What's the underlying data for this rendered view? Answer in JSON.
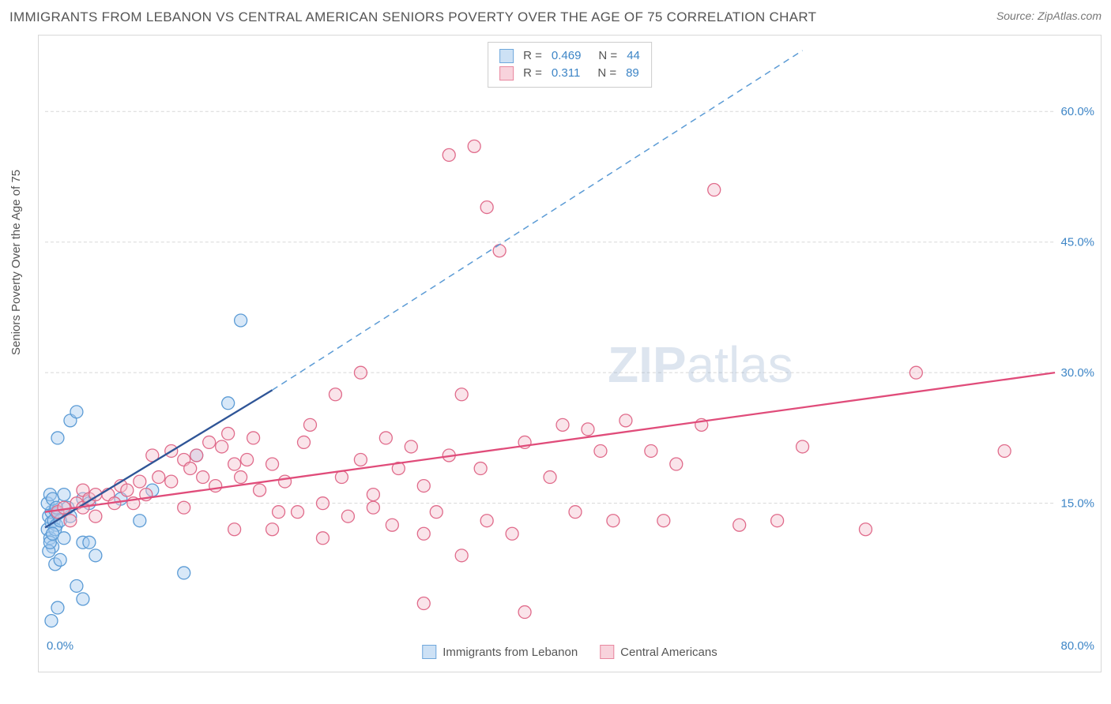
{
  "title": "IMMIGRANTS FROM LEBANON VS CENTRAL AMERICAN SENIORS POVERTY OVER THE AGE OF 75 CORRELATION CHART",
  "source": "Source: ZipAtlas.com",
  "y_axis_label": "Seniors Poverty Over the Age of 75",
  "watermark_bold": "ZIP",
  "watermark_light": "atlas",
  "chart": {
    "type": "scatter",
    "xlim": [
      0,
      80
    ],
    "ylim": [
      0,
      68
    ],
    "y_ticks": [
      15.0,
      30.0,
      45.0,
      60.0
    ],
    "y_tick_labels": [
      "15.0%",
      "30.0%",
      "45.0%",
      "60.0%"
    ],
    "x_tick_left": "0.0%",
    "x_tick_right": "80.0%",
    "background_color": "#ffffff",
    "border_color": "#d8d8d8",
    "grid_color": "#d8d8d8",
    "marker_radius": 8,
    "marker_stroke_width": 1.3,
    "marker_fill_opacity": 0.45,
    "series": [
      {
        "name": "Immigrants from Lebanon",
        "color_fill": "#a8cdf0",
        "color_stroke": "#5b9bd5",
        "R": "0.469",
        "N": "44",
        "trend_solid": {
          "x1": 0,
          "y1": 12.2,
          "x2": 18,
          "y2": 28.0,
          "color": "#2f5597",
          "width": 2.3
        },
        "trend_dashed": {
          "x1": 18,
          "y1": 28.0,
          "x2": 60,
          "y2": 67.0,
          "color": "#5b9bd5",
          "width": 1.5
        },
        "points": [
          [
            0.2,
            12.0
          ],
          [
            0.3,
            13.5
          ],
          [
            0.4,
            11.0
          ],
          [
            0.5,
            12.8
          ],
          [
            0.5,
            14.0
          ],
          [
            0.6,
            10.0
          ],
          [
            0.7,
            13.0
          ],
          [
            0.8,
            14.2
          ],
          [
            0.9,
            12.5
          ],
          [
            1.0,
            13.8
          ],
          [
            0.2,
            15.0
          ],
          [
            0.4,
            16.0
          ],
          [
            0.6,
            15.5
          ],
          [
            1.0,
            22.5
          ],
          [
            2.0,
            24.5
          ],
          [
            2.5,
            25.5
          ],
          [
            1.5,
            16.0
          ],
          [
            2.0,
            13.5
          ],
          [
            3.0,
            15.5
          ],
          [
            3.5,
            15.0
          ],
          [
            3.0,
            10.5
          ],
          [
            3.5,
            10.5
          ],
          [
            4.0,
            9.0
          ],
          [
            2.5,
            5.5
          ],
          [
            3.0,
            4.0
          ],
          [
            0.5,
            1.5
          ],
          [
            0.8,
            8.0
          ],
          [
            1.2,
            8.5
          ],
          [
            1.5,
            11.0
          ],
          [
            6.0,
            15.5
          ],
          [
            7.5,
            13.0
          ],
          [
            8.5,
            16.5
          ],
          [
            11.0,
            7.0
          ],
          [
            12.0,
            20.5
          ],
          [
            14.5,
            26.5
          ],
          [
            15.5,
            36.0
          ],
          [
            1.0,
            3.0
          ],
          [
            0.3,
            9.5
          ],
          [
            0.4,
            10.5
          ],
          [
            0.8,
            12.0
          ],
          [
            0.6,
            11.5
          ],
          [
            0.9,
            14.5
          ],
          [
            1.2,
            13.0
          ],
          [
            1.8,
            14.5
          ]
        ]
      },
      {
        "name": "Central Americans",
        "color_fill": "#f5c3d0",
        "color_stroke": "#e06b8b",
        "R": "0.311",
        "N": "89",
        "trend_solid": {
          "x1": 0,
          "y1": 14.0,
          "x2": 80,
          "y2": 30.0,
          "color": "#e04c7a",
          "width": 2.3
        },
        "points": [
          [
            1.0,
            14.0
          ],
          [
            1.5,
            14.5
          ],
          [
            2.0,
            13.0
          ],
          [
            2.5,
            15.0
          ],
          [
            3.0,
            14.5
          ],
          [
            3.0,
            16.5
          ],
          [
            3.5,
            15.5
          ],
          [
            4.0,
            13.5
          ],
          [
            4.0,
            16.0
          ],
          [
            5.0,
            16.0
          ],
          [
            5.5,
            15.0
          ],
          [
            6.0,
            17.0
          ],
          [
            6.5,
            16.5
          ],
          [
            7.0,
            15.0
          ],
          [
            7.5,
            17.5
          ],
          [
            8.0,
            16.0
          ],
          [
            8.5,
            20.5
          ],
          [
            9.0,
            18.0
          ],
          [
            10.0,
            17.5
          ],
          [
            10.0,
            21.0
          ],
          [
            11.0,
            20.0
          ],
          [
            11.5,
            19.0
          ],
          [
            12.0,
            20.5
          ],
          [
            12.5,
            18.0
          ],
          [
            13.0,
            22.0
          ],
          [
            13.5,
            17.0
          ],
          [
            14.0,
            21.5
          ],
          [
            14.5,
            23.0
          ],
          [
            15.0,
            19.5
          ],
          [
            15.5,
            18.0
          ],
          [
            16.0,
            20.0
          ],
          [
            16.5,
            22.5
          ],
          [
            17.0,
            16.5
          ],
          [
            18.0,
            19.5
          ],
          [
            18.0,
            12.0
          ],
          [
            19.0,
            17.5
          ],
          [
            20.0,
            14.0
          ],
          [
            20.5,
            22.0
          ],
          [
            21.0,
            24.0
          ],
          [
            22.0,
            15.0
          ],
          [
            23.0,
            27.5
          ],
          [
            23.5,
            18.0
          ],
          [
            24.0,
            13.5
          ],
          [
            25.0,
            20.0
          ],
          [
            25.0,
            30.0
          ],
          [
            26.0,
            16.0
          ],
          [
            27.0,
            22.5
          ],
          [
            27.5,
            12.5
          ],
          [
            28.0,
            19.0
          ],
          [
            29.0,
            21.5
          ],
          [
            30.0,
            17.0
          ],
          [
            30.0,
            11.5
          ],
          [
            31.0,
            14.0
          ],
          [
            32.0,
            20.5
          ],
          [
            32.0,
            55.0
          ],
          [
            33.0,
            27.5
          ],
          [
            33.0,
            9.0
          ],
          [
            34.0,
            56.0
          ],
          [
            34.5,
            19.0
          ],
          [
            35.0,
            13.0
          ],
          [
            35.0,
            49.0
          ],
          [
            36.0,
            44.0
          ],
          [
            37.0,
            11.5
          ],
          [
            38.0,
            22.0
          ],
          [
            38.0,
            2.5
          ],
          [
            40.0,
            18.0
          ],
          [
            41.0,
            24.0
          ],
          [
            42.0,
            14.0
          ],
          [
            43.0,
            23.5
          ],
          [
            44.0,
            21.0
          ],
          [
            45.0,
            13.0
          ],
          [
            46.0,
            24.5
          ],
          [
            48.0,
            21.0
          ],
          [
            49.0,
            13.0
          ],
          [
            50.0,
            19.5
          ],
          [
            52.0,
            24.0
          ],
          [
            53.0,
            51.0
          ],
          [
            55.0,
            12.5
          ],
          [
            58.0,
            13.0
          ],
          [
            60.0,
            21.5
          ],
          [
            65.0,
            12.0
          ],
          [
            69.0,
            30.0
          ],
          [
            76.0,
            21.0
          ],
          [
            15.0,
            12.0
          ],
          [
            18.5,
            14.0
          ],
          [
            22.0,
            11.0
          ],
          [
            26.0,
            14.5
          ],
          [
            30.0,
            3.5
          ],
          [
            11.0,
            14.5
          ]
        ]
      }
    ],
    "bottom_legend": [
      {
        "swatch": "blue",
        "label": "Immigrants from Lebanon"
      },
      {
        "swatch": "pink",
        "label": "Central Americans"
      }
    ]
  }
}
